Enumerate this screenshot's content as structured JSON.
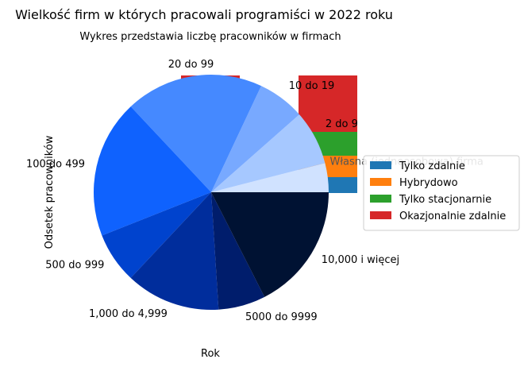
{
  "chart_data": {
    "type": "pie",
    "title": "Wielkość firm w których pracowali programiści w 2022 roku",
    "subtitle": "Wykres przedstawia liczbę pracowników w firmach",
    "xlabel": "Rok",
    "ylabel": "Odsetek pracowników",
    "legend_position": "right",
    "slices": [
      {
        "label": "Własna (jednoosobowa) firma",
        "value": 4.0,
        "color": "#d0e2ff"
      },
      {
        "label": "2 do 9",
        "value": 7.5,
        "color": "#a6c8ff"
      },
      {
        "label": "10 do 19",
        "value": 6.5,
        "color": "#78a9ff"
      },
      {
        "label": "20 do 99",
        "value": 19.0,
        "color": "#4589ff"
      },
      {
        "label": "100 do 499",
        "value": 19.0,
        "color": "#0f62fe"
      },
      {
        "label": "500 do 999",
        "value": 7.0,
        "color": "#0043ce"
      },
      {
        "label": "1,000 do 4,999",
        "value": 13.0,
        "color": "#002d9c"
      },
      {
        "label": "5000 do 9999",
        "value": 6.5,
        "color": "#001d6c"
      },
      {
        "label": "10,000 i więcej",
        "value": 17.5,
        "color": "#001233"
      }
    ],
    "overlay_bar": {
      "type": "bar",
      "stacked": true,
      "series": [
        {
          "name": "Tylko zdalnie",
          "color": "#1f77b4"
        },
        {
          "name": "Hybrydowo",
          "color": "#ff7f0e"
        },
        {
          "name": "Tylko stacjonarnie",
          "color": "#2ca02c"
        },
        {
          "name": "Okazjonalnie zdalnie",
          "color": "#d62728"
        }
      ]
    }
  }
}
